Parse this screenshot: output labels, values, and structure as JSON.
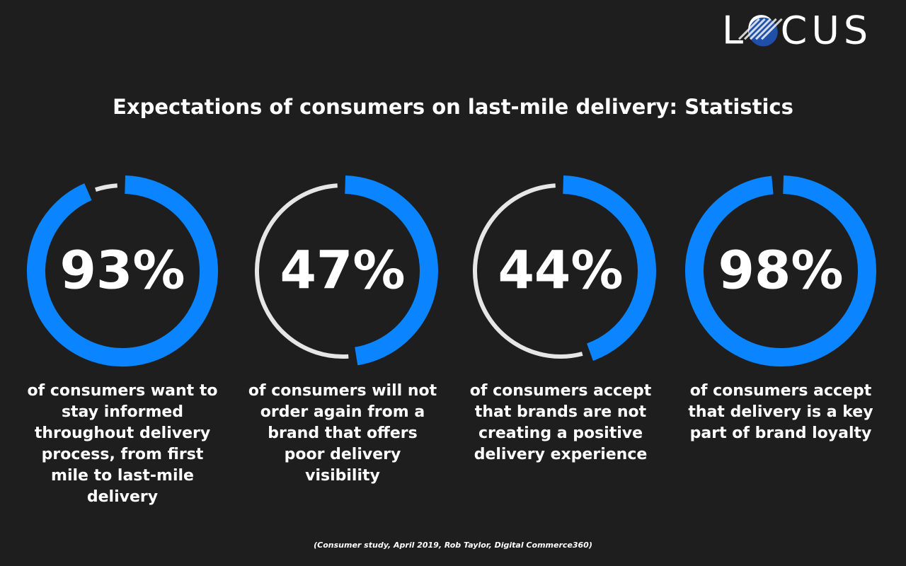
{
  "logo": "LOCUS",
  "title": "Expectations of consumers on last-mile delivery: Statistics",
  "source": "(Consumer study, April 2019, Rob Taylor, Digital Commerce360)",
  "chart_data": [
    {
      "type": "gauge",
      "values": [
        93
      ],
      "value_labels": [
        "93%"
      ],
      "color": "#0a84ff",
      "caption": "of consumers want to stay informed throughout delivery process, from first mile to last-mile delivery"
    },
    {
      "type": "gauge",
      "values": [
        47
      ],
      "value_labels": [
        "47%"
      ],
      "color": "#0a84ff",
      "caption": "of consumers will not order again from a brand that offers poor delivery visibility"
    },
    {
      "type": "gauge",
      "values": [
        44
      ],
      "value_labels": [
        "44%"
      ],
      "color": "#0a84ff",
      "caption": "of consumers accept that brands are not creating a positive delivery experience"
    },
    {
      "type": "gauge",
      "values": [
        98
      ],
      "value_labels": [
        "98%"
      ],
      "color": "#0a84ff",
      "caption": "of consumers accept that delivery is a key part of brand loyalty"
    }
  ]
}
